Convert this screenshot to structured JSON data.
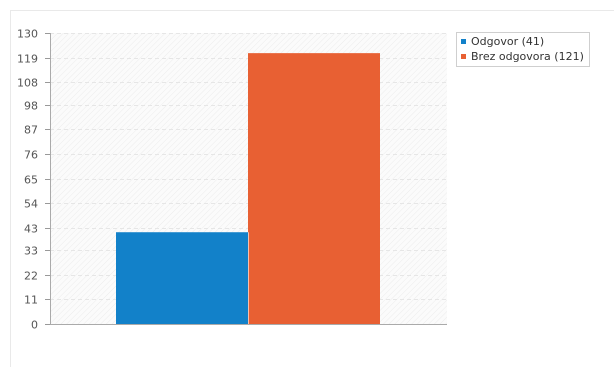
{
  "chart_data": {
    "type": "bar",
    "title": "",
    "xlabel": "",
    "ylabel": "",
    "categories": [
      "Odgovor (41)",
      "Brez odgovora (121)"
    ],
    "values": [
      41,
      121
    ],
    "colors": [
      "#1281c9",
      "#e86033"
    ],
    "ylim": [
      0,
      130
    ],
    "yticks": [
      0,
      11,
      22,
      33,
      43,
      54,
      65,
      76,
      87,
      98,
      108,
      119,
      130
    ],
    "grid": true,
    "legend_position": "top-right"
  },
  "legend": {
    "items": [
      {
        "label": "Odgovor (41)",
        "color": "#1281c9"
      },
      {
        "label": "Brez odgovora (121)",
        "color": "#e86033"
      }
    ]
  }
}
